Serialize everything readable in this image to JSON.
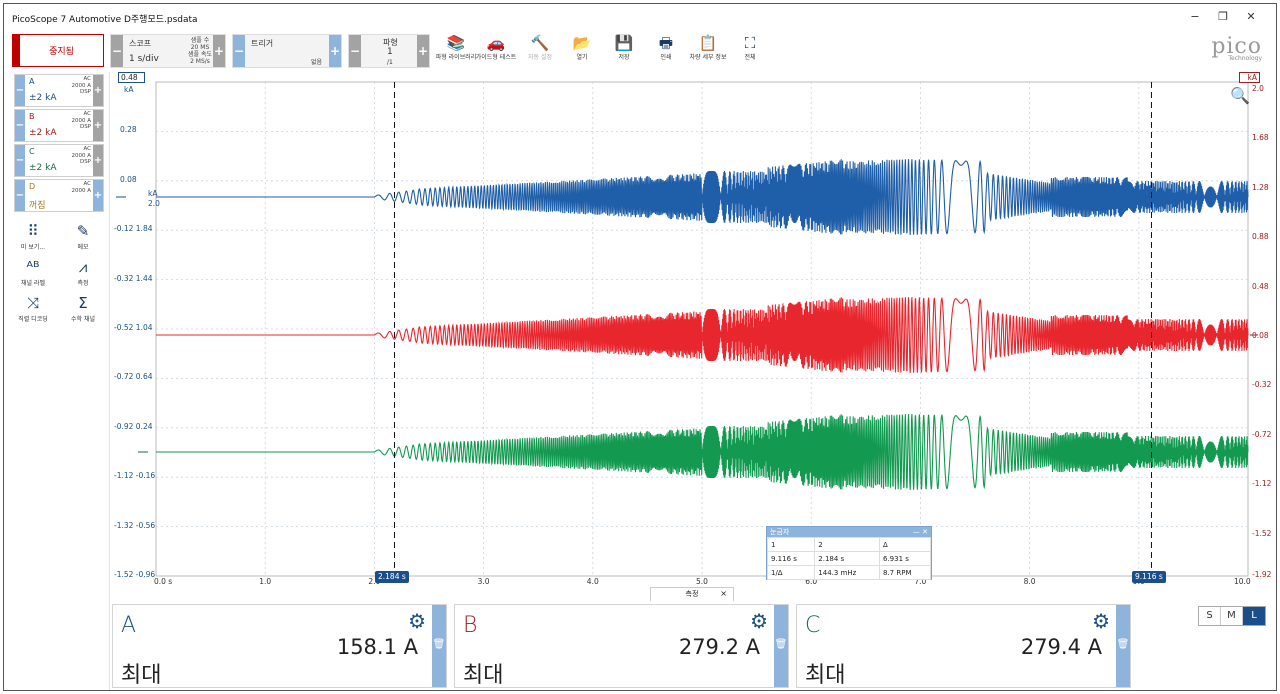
{
  "window": {
    "title": "PicoScope 7 Automotive D주행모드.psdata",
    "minimize": "−",
    "restore": "❐",
    "close": "✕"
  },
  "toolbar": {
    "stop_label": "중지됨",
    "scope": {
      "label": "스코프",
      "value": "1 s/div",
      "samples_label": "샘플 수",
      "samples": "20 MS",
      "rate_label": "샘플 속도",
      "rate": "2 MS/s",
      "minus": "−",
      "plus": "+"
    },
    "trigger": {
      "label": "트리거",
      "mode": "없음",
      "minus": "−",
      "plus": "+"
    },
    "waveform": {
      "label": "파형",
      "value": "1",
      "of": "/1",
      "minus": "−",
      "plus": "+"
    },
    "tools": [
      {
        "name": "waveform-library",
        "icon": "📚",
        "label": "파형 라이브러리"
      },
      {
        "name": "guided-test",
        "icon": "🚗",
        "label": "가이드형 테스트"
      },
      {
        "name": "auto-setup",
        "icon": "🔨",
        "label": "자동 설정"
      },
      {
        "name": "open",
        "icon": "📂",
        "label": "열기"
      },
      {
        "name": "save",
        "icon": "💾",
        "label": "저장"
      },
      {
        "name": "print",
        "icon": "🖶",
        "label": "인쇄"
      },
      {
        "name": "vehicle-details",
        "icon": "📋",
        "label": "차량 세부 정보"
      },
      {
        "name": "full-screen",
        "icon": "⛶",
        "label": "전체"
      }
    ],
    "logo": {
      "word": "pico",
      "sub": "Technology"
    }
  },
  "channels": [
    {
      "name": "A",
      "range": "±2 kA",
      "coupling": "AC",
      "probe": "2000 A",
      "dsp": "DSP",
      "color": "#1a4f8b"
    },
    {
      "name": "B",
      "range": "±2 kA",
      "coupling": "AC",
      "probe": "2000 A",
      "dsp": "DSP",
      "color": "#a01e1e"
    },
    {
      "name": "C",
      "range": "±2 kA",
      "coupling": "AC",
      "probe": "2000 A",
      "dsp": "DSP",
      "color": "#1a6b45"
    },
    {
      "name": "D",
      "range": "꺼짐",
      "coupling": "AC",
      "probe": "2000 A",
      "dsp": "",
      "color": "#a07a1e"
    }
  ],
  "side_tools": [
    {
      "name": "view",
      "icon": "⠿",
      "label": "미 보기..."
    },
    {
      "name": "notes",
      "icon": "✎",
      "label": "메모"
    },
    {
      "name": "channel-labels",
      "icon": "ᴬᴮ",
      "label": "채널 라벨"
    },
    {
      "name": "measure",
      "icon": "⩘",
      "label": "측정"
    },
    {
      "name": "serial-decoding",
      "icon": "⤨",
      "label": "직렬 디코딩"
    },
    {
      "name": "math-channels",
      "icon": "Σ",
      "label": "수학 채널"
    }
  ],
  "plot": {
    "left_unit": "kA",
    "left_top_value": "0.48",
    "left_ticks": [
      "0.28",
      "0.08",
      "-0.12 1.84",
      "-0.32 1.44",
      "-0.52 1.04",
      "-0.72 0.64",
      "-0.92 0.24",
      "-1.12 -0.16",
      "-1.32 -0.56",
      "-1.52 -0.96"
    ],
    "left_marker_label": "kA",
    "left_marker_value": "2.0",
    "right_unit": "kA",
    "right_ticks": [
      "2.0",
      "1.68",
      "1.28",
      "0.88",
      "0.48",
      "0.08",
      "-0.32",
      "-0.72",
      "-1.12",
      "-1.52",
      "-1.92"
    ],
    "x_ticks": [
      "0.0 s",
      "1.0",
      "2.0",
      "3.0",
      "4.0",
      "5.0",
      "6.0",
      "7.0",
      "8.0",
      "9.0",
      "10.0"
    ],
    "cursor1_label": "2.184 s",
    "cursor2_label": "9.116 s"
  },
  "ruler_table": {
    "title": "눈금자",
    "headers": [
      "1",
      "2",
      "Δ"
    ],
    "row1": [
      "9.116 s",
      "2.184 s",
      "6.931 s"
    ],
    "row2": [
      "1/Δ",
      "144.3 mHz",
      "8.7 RPM"
    ]
  },
  "measurements": {
    "tab_label": "측정",
    "tab_close": "×",
    "panels": [
      {
        "channel": "A",
        "value": "158.1 A",
        "type": "최대",
        "color": "#1a4f8b"
      },
      {
        "channel": "B",
        "value": "279.2 A",
        "type": "최대",
        "color": "#a01e1e"
      },
      {
        "channel": "C",
        "value": "279.4 A",
        "type": "최대",
        "color": "#1a6b45"
      }
    ],
    "size_buttons": [
      "S",
      "M",
      "L"
    ]
  },
  "colors": {
    "accent": "#1a4f8b",
    "channel_a": "#1f5ea8",
    "channel_b": "#e8262e",
    "channel_c": "#139a50",
    "stop": "#c00000"
  }
}
